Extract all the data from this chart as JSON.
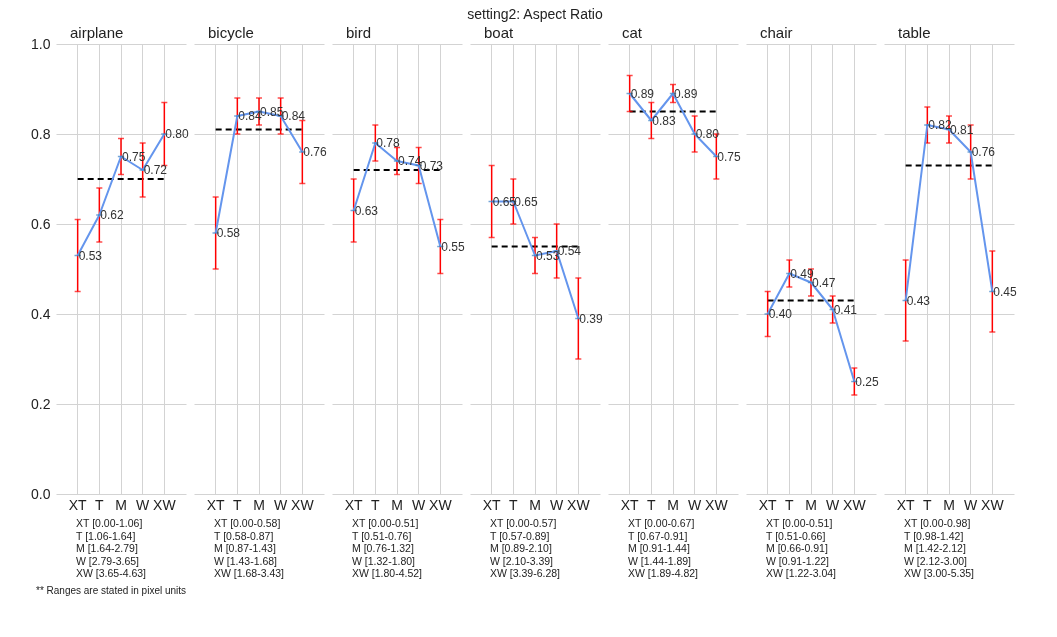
{
  "chart_data": [
    {
      "type": "line",
      "subtitle": "airplane",
      "categories": [
        "XT",
        "T",
        "M",
        "W",
        "XW"
      ],
      "ylim": [
        0,
        1
      ],
      "yticks": [
        {
          "value": 0,
          "label": "0.0"
        },
        0.2,
        0.4,
        0.6,
        0.8,
        {
          "value": 1,
          "label": "1.0"
        }
      ],
      "grid": true,
      "series": [
        {
          "color": "#6495ed",
          "values": [
            0.53,
            0.62,
            0.75,
            0.72,
            0.8
          ],
          "value_labels": [
            "0.53",
            "0.62",
            "0.75",
            "0.72",
            "0.80"
          ],
          "errors": [
            0.08,
            0.06,
            0.04,
            0.06,
            0.07
          ]
        }
      ],
      "ref_lines": [
        {
          "axis": "y",
          "value": 0.7,
          "color": "#000000",
          "line_style": "dashed"
        }
      ],
      "annotations": [
        "XT [0.00-1.06]",
        "T [1.06-1.64]",
        "M [1.64-2.79]",
        "W [2.79-3.65]",
        "XW [3.65-4.63]",
        "** Ranges are stated in pixel units"
      ]
    },
    {
      "type": "line",
      "subtitle": "bicycle",
      "categories": [
        "XT",
        "T",
        "M",
        "W",
        "XW"
      ],
      "ylim": [
        0,
        1
      ],
      "yticks": [
        0,
        0.2,
        0.4,
        0.6,
        0.8,
        1
      ],
      "grid": true,
      "tick_labels": "x",
      "series": [
        {
          "color": "#6495ed",
          "values": [
            0.58,
            0.84,
            0.85,
            0.84,
            0.76
          ],
          "value_labels": [
            "0.58",
            "0.84",
            "0.85",
            "0.84",
            "0.76"
          ],
          "errors": [
            0.08,
            0.04,
            0.03,
            0.04,
            0.07
          ]
        }
      ],
      "ref_lines": [
        {
          "axis": "y",
          "value": 0.81,
          "color": "#000000",
          "line_style": "dashed"
        }
      ],
      "annotations": [
        "XT [0.00-0.58]",
        "T [0.58-0.87]",
        "M [0.87-1.43]",
        "W [1.43-1.68]",
        "XW [1.68-3.43]"
      ]
    },
    {
      "type": "line",
      "subtitle": "bird",
      "categories": [
        "XT",
        "T",
        "M",
        "W",
        "XW"
      ],
      "ylim": [
        0,
        1
      ],
      "yticks": [
        0,
        0.2,
        0.4,
        0.6,
        0.8,
        1
      ],
      "grid": true,
      "tick_labels": "x",
      "series": [
        {
          "color": "#6495ed",
          "values": [
            0.63,
            0.78,
            0.74,
            0.73,
            0.55
          ],
          "value_labels": [
            "0.63",
            "0.78",
            "0.74",
            "0.73",
            "0.55"
          ],
          "errors": [
            0.07,
            0.04,
            0.03,
            0.04,
            0.06
          ]
        }
      ],
      "ref_lines": [
        {
          "axis": "y",
          "value": 0.72,
          "color": "#000000",
          "line_style": "dashed"
        }
      ],
      "annotations": [
        "XT [0.00-0.51]",
        "T [0.51-0.76]",
        "M [0.76-1.32]",
        "W [1.32-1.80]",
        "XW [1.80-4.52]"
      ]
    },
    {
      "type": "line",
      "title": "setting2: Aspect Ratio",
      "subtitle": "boat",
      "categories": [
        "XT",
        "T",
        "M",
        "W",
        "XW"
      ],
      "ylim": [
        0,
        1
      ],
      "yticks": [
        0,
        0.2,
        0.4,
        0.6,
        0.8,
        1
      ],
      "grid": true,
      "tick_labels": "x",
      "series": [
        {
          "color": "#6495ed",
          "values": [
            0.65,
            0.65,
            0.53,
            0.54,
            0.39
          ],
          "value_labels": [
            "0.65",
            "0.65",
            "0.53",
            "0.54",
            "0.39"
          ],
          "errors": [
            0.08,
            0.05,
            0.04,
            0.06,
            0.09
          ]
        }
      ],
      "ref_lines": [
        {
          "axis": "y",
          "value": 0.55,
          "color": "#000000",
          "line_style": "dashed"
        }
      ],
      "annotations": [
        "XT [0.00-0.57]",
        "T [0.57-0.89]",
        "M [0.89-2.10]",
        "W [2.10-3.39]",
        "XW [3.39-6.28]"
      ]
    },
    {
      "type": "line",
      "subtitle": "cat",
      "categories": [
        "XT",
        "T",
        "M",
        "W",
        "XW"
      ],
      "ylim": [
        0,
        1
      ],
      "yticks": [
        0,
        0.2,
        0.4,
        0.6,
        0.8,
        1
      ],
      "grid": true,
      "tick_labels": "x",
      "series": [
        {
          "color": "#6495ed",
          "values": [
            0.89,
            0.83,
            0.89,
            0.8,
            0.75
          ],
          "value_labels": [
            "0.89",
            "0.83",
            "0.89",
            "0.80",
            "0.75"
          ],
          "errors": [
            0.04,
            0.04,
            0.02,
            0.04,
            0.05
          ]
        }
      ],
      "ref_lines": [
        {
          "axis": "y",
          "value": 0.85,
          "color": "#000000",
          "line_style": "dashed"
        }
      ],
      "annotations": [
        "XT [0.00-0.67]",
        "T [0.67-0.91]",
        "M [0.91-1.44]",
        "W [1.44-1.89]",
        "XW [1.89-4.82]"
      ]
    },
    {
      "type": "line",
      "subtitle": "chair",
      "categories": [
        "XT",
        "T",
        "M",
        "W",
        "XW"
      ],
      "ylim": [
        0,
        1
      ],
      "yticks": [
        0,
        0.2,
        0.4,
        0.6,
        0.8,
        1
      ],
      "grid": true,
      "tick_labels": "x",
      "series": [
        {
          "color": "#6495ed",
          "values": [
            0.4,
            0.49,
            0.47,
            0.41,
            0.25
          ],
          "value_labels": [
            "0.40",
            "0.49",
            "0.47",
            "0.41",
            "0.25"
          ],
          "errors": [
            0.05,
            0.03,
            0.03,
            0.03,
            0.03
          ]
        }
      ],
      "ref_lines": [
        {
          "axis": "y",
          "value": 0.43,
          "color": "#000000",
          "line_style": "dashed"
        }
      ],
      "annotations": [
        "XT [0.00-0.51]",
        "T [0.51-0.66]",
        "M [0.66-0.91]",
        "W [0.91-1.22]",
        "XW [1.22-3.04]"
      ]
    },
    {
      "type": "line",
      "subtitle": "table",
      "categories": [
        "XT",
        "T",
        "M",
        "W",
        "XW"
      ],
      "ylim": [
        0,
        1
      ],
      "yticks": [
        0,
        0.2,
        0.4,
        0.6,
        0.8,
        1
      ],
      "grid": true,
      "tick_labels": "x",
      "series": [
        {
          "color": "#6495ed",
          "values": [
            0.43,
            0.82,
            0.81,
            0.76,
            0.45
          ],
          "value_labels": [
            "0.43",
            "0.82",
            "0.81",
            "0.76",
            "0.45"
          ],
          "errors": [
            0.09,
            0.04,
            0.03,
            0.06,
            0.09
          ]
        }
      ],
      "ref_lines": [
        {
          "axis": "y",
          "value": 0.73,
          "color": "#000000",
          "line_style": "dashed"
        }
      ],
      "annotations": [
        "XT [0.00-0.98]",
        "T [0.98-1.42]",
        "M [1.42-2.12]",
        "W [2.12-3.00]",
        "XW [3.00-5.35]"
      ]
    }
  ]
}
